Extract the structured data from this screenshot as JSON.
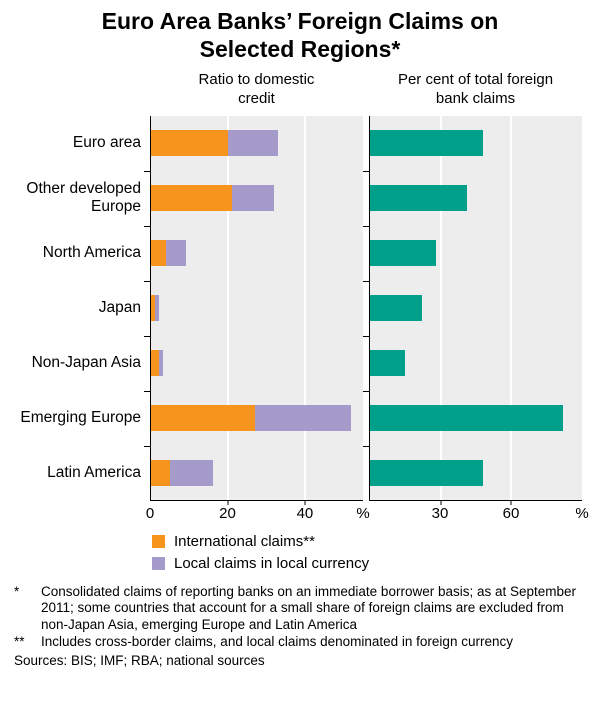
{
  "title": "Euro Area Banks’ Foreign Claims on\nSelected Regions*",
  "footnotes": [
    {
      "marker": "*",
      "text": "Consolidated claims of reporting banks on an immediate borrower basis; as at September 2011; some countries that account for a small share of foreign claims are excluded from non-Japan Asia, emerging Europe and Latin America"
    },
    {
      "marker": "**",
      "text": "Includes cross-border claims, and local claims denominated in foreign currency"
    }
  ],
  "sources": "Sources: BIS; IMF; RBA; national sources",
  "colors": {
    "international_claims": "#F7941D",
    "local_claims": "#A49BCB",
    "total_foreign_claims": "#00A08B",
    "plot_background": "#EDEDED",
    "gridline": "#FFFFFF"
  },
  "chart_data": {
    "type": "bar",
    "orientation": "horizontal",
    "grid": true,
    "categories": [
      "Euro area",
      "Other developed\nEurope",
      "North America",
      "Japan",
      "Non-Japan Asia",
      "Emerging Europe",
      "Latin America"
    ],
    "panels": [
      {
        "title": "Ratio to domestic\ncredit",
        "unit": "%",
        "xlim": [
          0,
          55
        ],
        "ticks": [
          0,
          20,
          40
        ],
        "stacked": true,
        "series": [
          {
            "name": "International claims**",
            "color": "#F7941D",
            "values": [
              20,
              21,
              4,
              1,
              2,
              27,
              5
            ]
          },
          {
            "name": "Local claims in local currency",
            "color": "#A49BCB",
            "values": [
              13,
              11,
              5,
              1,
              1,
              25,
              11
            ]
          }
        ]
      },
      {
        "title": "Per cent of total foreign\nbank claims",
        "unit": "%",
        "xlim": [
          0,
          90
        ],
        "ticks": [
          30,
          60
        ],
        "stacked": false,
        "series": [
          {
            "name": "Per cent of total foreign bank claims",
            "color": "#00A08B",
            "values": [
              48,
              41,
              28,
              22,
              15,
              82,
              48
            ]
          }
        ]
      }
    ]
  }
}
